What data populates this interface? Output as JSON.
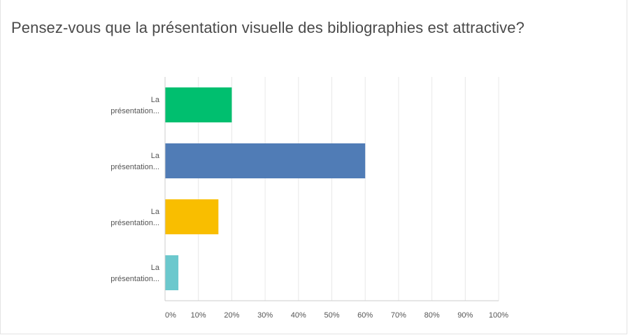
{
  "question": {
    "title": "Pensez-vous que la présentation visuelle des bibliographies est attractive?"
  },
  "chart_data": {
    "type": "bar",
    "orientation": "horizontal",
    "categories": [
      [
        "La",
        "présentation..."
      ],
      [
        "La",
        "présentation..."
      ],
      [
        "La",
        "présentation..."
      ],
      [
        "La",
        "présentation..."
      ]
    ],
    "values": [
      20,
      60,
      16,
      4
    ],
    "value_unit": "%",
    "bar_colors": [
      "#00bf6f",
      "#507cb6",
      "#f9be00",
      "#6bc8cd"
    ],
    "xlim": [
      0,
      100
    ],
    "xticks": [
      "0%",
      "10%",
      "20%",
      "30%",
      "40%",
      "50%",
      "60%",
      "70%",
      "80%",
      "90%",
      "100%"
    ],
    "grid": true,
    "legend": "none",
    "colors": {
      "grid": "#e8e8e8",
      "axis": "#cccccc",
      "text": "#555555"
    }
  }
}
